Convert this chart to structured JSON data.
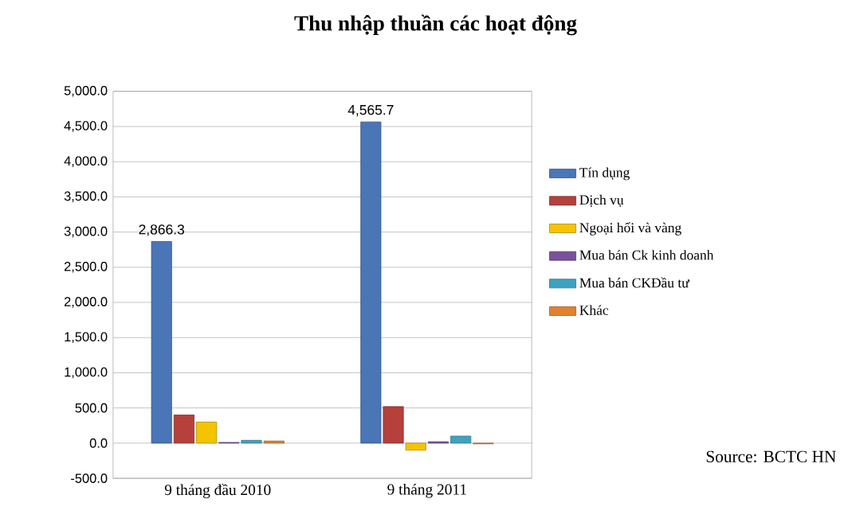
{
  "chart_data": {
    "type": "bar",
    "title": "Thu nhập thuần các hoạt động",
    "categories": [
      "9 tháng đầu 2010",
      "9 tháng 2011"
    ],
    "series": [
      {
        "name": "Tín dụng",
        "color": "#4a76b8",
        "values": [
          2866.3,
          4565.7
        ],
        "value_labels": [
          "2,866.3",
          "4,565.7"
        ]
      },
      {
        "name": "Dịch vụ",
        "color": "#b5403c",
        "values": [
          400,
          520
        ]
      },
      {
        "name": "Ngoại hối và vàng",
        "color": "#f5c400",
        "values": [
          300,
          -100
        ]
      },
      {
        "name": "Mua bán Ck kinh doanh",
        "color": "#7b519c",
        "values": [
          10,
          20
        ]
      },
      {
        "name": "Mua bán CKĐầu tư",
        "color": "#3fa3bf",
        "values": [
          40,
          100
        ]
      },
      {
        "name": "Khác",
        "color": "#e2812f",
        "values": [
          30,
          -10
        ]
      }
    ],
    "ylim": [
      -500,
      5000
    ],
    "yticks": [
      {
        "value": -500,
        "label": "-500.0"
      },
      {
        "value": 0,
        "label": "0.0"
      },
      {
        "value": 500,
        "label": "500.0"
      },
      {
        "value": 1000,
        "label": "1,000.0"
      },
      {
        "value": 1500,
        "label": "1,500.0"
      },
      {
        "value": 2000,
        "label": "2,000.0"
      },
      {
        "value": 2500,
        "label": "2,500.0"
      },
      {
        "value": 3000,
        "label": "3,000.0"
      },
      {
        "value": 3500,
        "label": "3,500.0"
      },
      {
        "value": 4000,
        "label": "4,000.0"
      },
      {
        "value": 4500,
        "label": "4,500.0"
      },
      {
        "value": 5000,
        "label": "5,000.0"
      }
    ],
    "grid": "y",
    "legend": "right",
    "annotations": [
      "Source: BCTC HN"
    ]
  }
}
